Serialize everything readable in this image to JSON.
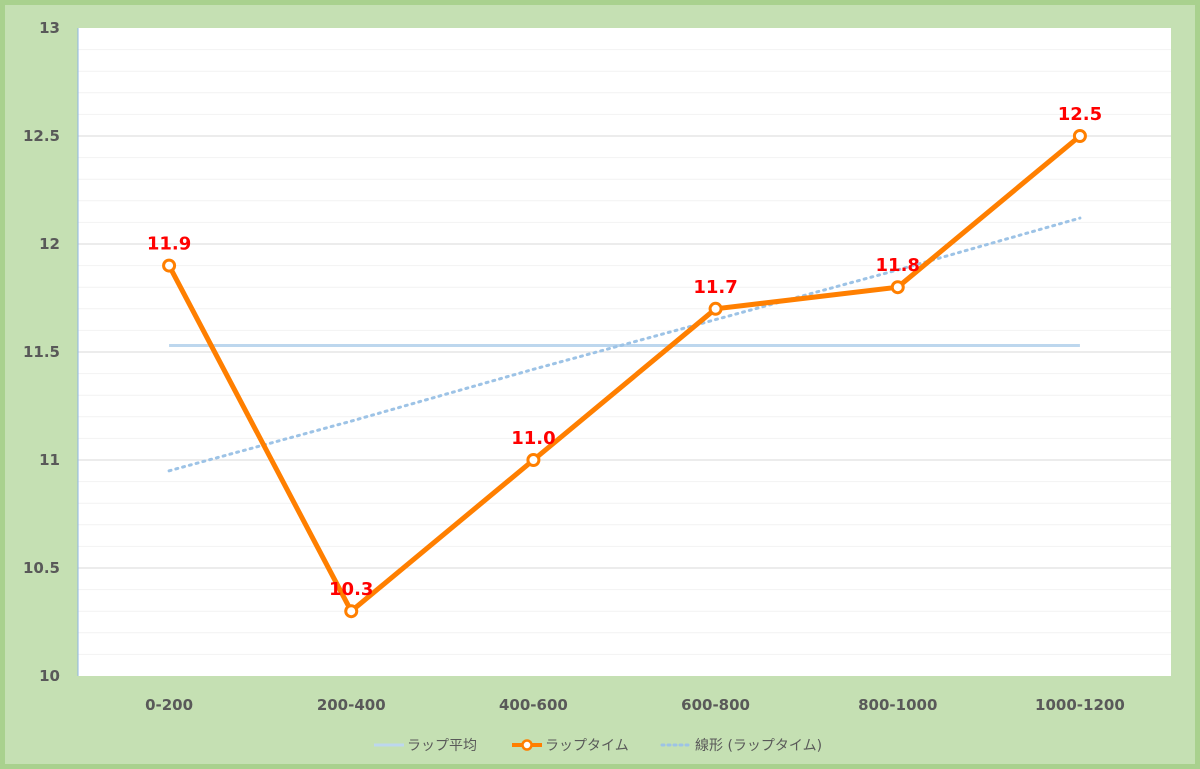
{
  "chart_data": {
    "type": "line",
    "categories": [
      "0-200",
      "200-400",
      "400-600",
      "600-800",
      "800-1000",
      "1000-1200"
    ],
    "series": [
      {
        "name": "ラップ平均",
        "values": [
          11.53,
          11.53,
          11.53,
          11.53,
          11.53,
          11.53
        ],
        "color": "#bdd7ee",
        "style": "solid"
      },
      {
        "name": "ラップタイム",
        "values": [
          11.9,
          10.3,
          11.0,
          11.7,
          11.8,
          12.5
        ],
        "color": "#ff7f00",
        "style": "solid-markers"
      },
      {
        "name": "線形 (ラップタイム)",
        "values": [
          10.95,
          11.18,
          11.42,
          11.65,
          11.88,
          12.12
        ],
        "color": "#9dc3e6",
        "style": "dotted"
      }
    ],
    "data_labels": [
      "11.9",
      "10.3",
      "11.0",
      "11.7",
      "11.8",
      "12.5"
    ],
    "ylim": [
      10,
      13
    ],
    "yticks": [
      "10",
      "10.5",
      "11",
      "11.5",
      "12",
      "12.5",
      "13"
    ],
    "title": "",
    "xlabel": "",
    "ylabel": "",
    "grid": true,
    "legend_position": "bottom",
    "colors": {
      "frame": "#a9d18e",
      "background": "#c5e0b3",
      "plot_area": "#ffffff",
      "label": "#ff0000",
      "tick_text": "#595959"
    }
  }
}
